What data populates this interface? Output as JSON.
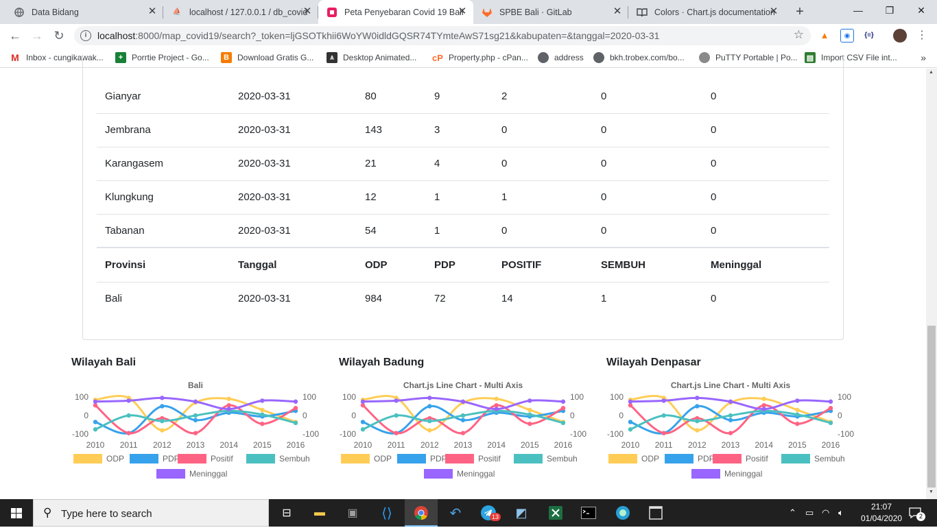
{
  "browser": {
    "tabs": [
      {
        "title": "Data Bidang",
        "icon": "globe-icon",
        "active": false
      },
      {
        "title": "localhost / 127.0.0.1 / db_covid",
        "icon": "phpmyadmin-icon",
        "active": false
      },
      {
        "title": "Peta Penyebaran Covid 19 Bali",
        "icon": "map-pin-icon",
        "active": true
      },
      {
        "title": "SPBE Bali · GitLab",
        "icon": "gitlab-icon",
        "active": false
      },
      {
        "title": "Colors · Chart.js documentation",
        "icon": "book-icon",
        "active": false
      }
    ],
    "url_host": "localhost",
    "url_rest": ":8000/map_covid19/search?_token=ljGSOTkhii6WoYW0idldGQSR74TYmteAwS71sg21&kabupaten=&tanggal=2020-03-31",
    "bookmarks": [
      {
        "label": "Inbox - cungikawak...",
        "icon": "gmail-icon",
        "color": "#d93025"
      },
      {
        "label": "Porrtie Project - Go...",
        "icon": "sheets-icon",
        "color": "#188038"
      },
      {
        "label": "Download Gratis G...",
        "icon": "blogger-icon",
        "color": "#f57c00"
      },
      {
        "label": "Desktop Animated...",
        "icon": "app-icon",
        "color": "#333333"
      },
      {
        "label": "Property.php - cPan...",
        "icon": "cpanel-icon",
        "color": "#ff6c2c"
      },
      {
        "label": "address",
        "icon": "globe-icon",
        "color": "#5f6368"
      },
      {
        "label": "bkh.trobex.com/bo...",
        "icon": "globe-icon",
        "color": "#5f6368"
      },
      {
        "label": "PuTTY Portable | Po...",
        "icon": "putty-icon",
        "color": "#5f6368"
      },
      {
        "label": "Import CSV File int...",
        "icon": "import-icon",
        "color": "#2e7d32"
      }
    ]
  },
  "table": {
    "rows": [
      [
        "Gianyar",
        "2020-03-31",
        "80",
        "9",
        "2",
        "0",
        "0"
      ],
      [
        "Jembrana",
        "2020-03-31",
        "143",
        "3",
        "0",
        "0",
        "0"
      ],
      [
        "Karangasem",
        "2020-03-31",
        "21",
        "4",
        "0",
        "0",
        "0"
      ],
      [
        "Klungkung",
        "2020-03-31",
        "12",
        "1",
        "1",
        "0",
        "0"
      ],
      [
        "Tabanan",
        "2020-03-31",
        "54",
        "1",
        "0",
        "0",
        "0"
      ]
    ],
    "summary_header": [
      "Provinsi",
      "Tanggal",
      "ODP",
      "PDP",
      "POSITIF",
      "SEMBUH",
      "Meninggal"
    ],
    "summary_row": [
      "Bali",
      "2020-03-31",
      "984",
      "72",
      "14",
      "1",
      "0"
    ]
  },
  "chart_data": [
    {
      "type": "line",
      "section_title": "Wilayah Bali",
      "title": "Bali",
      "x": [
        "2010",
        "2011",
        "2012",
        "2013",
        "2014",
        "2015",
        "2016"
      ],
      "ylim": [
        -100,
        100
      ],
      "y_ticks": [
        "100",
        "0",
        "-100"
      ],
      "right_axis_ticks": [
        "100",
        "0",
        "-100"
      ],
      "legend": "bottom",
      "series": [
        {
          "name": "ODP",
          "color": "#ffcd56",
          "values": [
            85,
            95,
            -80,
            70,
            90,
            30,
            -35
          ]
        },
        {
          "name": "PDP",
          "color": "#36a2eb",
          "values": [
            -35,
            -95,
            50,
            -25,
            15,
            -5,
            25
          ]
        },
        {
          "name": "Positif",
          "color": "#ff6384",
          "values": [
            55,
            -95,
            -15,
            -95,
            55,
            -45,
            40
          ]
        },
        {
          "name": "Sembuh",
          "color": "#4bc0c0",
          "values": [
            -75,
            0,
            -30,
            0,
            25,
            5,
            -40
          ]
        },
        {
          "name": "Meninggal",
          "color": "#9966ff",
          "values": [
            75,
            80,
            95,
            75,
            35,
            80,
            75
          ]
        }
      ]
    },
    {
      "type": "line",
      "section_title": "Wilayah Badung",
      "title": "Chart.js Line Chart - Multi Axis",
      "x": [
        "2010",
        "2011",
        "2012",
        "2013",
        "2014",
        "2015",
        "2016"
      ],
      "ylim": [
        -100,
        100
      ],
      "y_ticks": [
        "100",
        "0",
        "-100"
      ],
      "right_axis_ticks": [
        "100",
        "0",
        "-100"
      ],
      "legend": "bottom",
      "series": [
        {
          "name": "ODP",
          "color": "#ffcd56",
          "values": [
            85,
            95,
            -80,
            70,
            90,
            30,
            -35
          ]
        },
        {
          "name": "PDP",
          "color": "#36a2eb",
          "values": [
            -35,
            -95,
            50,
            -25,
            15,
            -5,
            25
          ]
        },
        {
          "name": "Positif",
          "color": "#ff6384",
          "values": [
            55,
            -95,
            -15,
            -95,
            55,
            -45,
            40
          ]
        },
        {
          "name": "Sembuh",
          "color": "#4bc0c0",
          "values": [
            -75,
            0,
            -30,
            0,
            25,
            5,
            -40
          ]
        },
        {
          "name": "Meninggal",
          "color": "#9966ff",
          "values": [
            75,
            80,
            95,
            75,
            35,
            80,
            75
          ]
        }
      ]
    },
    {
      "type": "line",
      "section_title": "Wilayah Denpasar",
      "title": "Chart.js Line Chart - Multi Axis",
      "x": [
        "2010",
        "2011",
        "2012",
        "2013",
        "2014",
        "2015",
        "2016"
      ],
      "ylim": [
        -100,
        100
      ],
      "y_ticks": [
        "100",
        "0",
        "-100"
      ],
      "right_axis_ticks": [
        "100",
        "0",
        "-100"
      ],
      "legend": "bottom",
      "series": [
        {
          "name": "ODP",
          "color": "#ffcd56",
          "values": [
            85,
            95,
            -80,
            70,
            90,
            30,
            -35
          ]
        },
        {
          "name": "PDP",
          "color": "#36a2eb",
          "values": [
            -35,
            -95,
            50,
            -25,
            15,
            -5,
            25
          ]
        },
        {
          "name": "Positif",
          "color": "#ff6384",
          "values": [
            55,
            -95,
            -15,
            -95,
            55,
            -45,
            40
          ]
        },
        {
          "name": "Sembuh",
          "color": "#4bc0c0",
          "values": [
            -75,
            0,
            -30,
            0,
            25,
            5,
            -40
          ]
        },
        {
          "name": "Meninggal",
          "color": "#9966ff",
          "values": [
            75,
            80,
            95,
            75,
            35,
            80,
            75
          ]
        }
      ]
    }
  ],
  "taskbar": {
    "search_placeholder": "Type here to search",
    "time": "21:07",
    "date": "01/04/2020",
    "telegram_badge": "13",
    "notification_count": "2"
  }
}
